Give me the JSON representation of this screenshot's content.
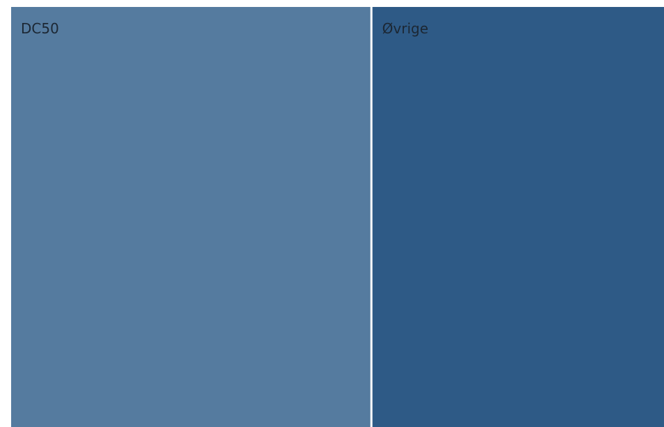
{
  "chart_data": {
    "type": "treemap",
    "title": "",
    "series": [
      {
        "name": "DC50",
        "value": 55.2,
        "color": "#557b9f"
      },
      {
        "name": "Øvrige",
        "value": 44.8,
        "color": "#2e5a86"
      }
    ]
  }
}
